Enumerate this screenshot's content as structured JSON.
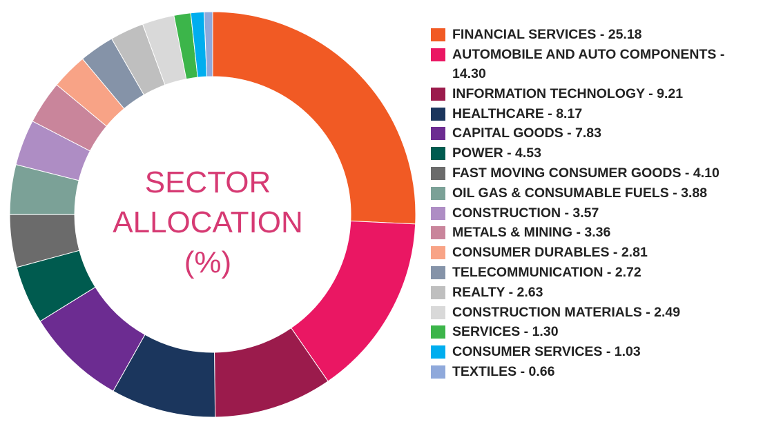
{
  "chart_data": {
    "type": "pie",
    "title": [
      "SECTOR",
      "ALLOCATION",
      "(%)"
    ],
    "legend_position": "right",
    "slices": [
      {
        "label": "FINANCIAL SERVICES - 25.18",
        "value": 25.18,
        "color": "#f15a24"
      },
      {
        "label": "AUTOMOBILE AND AUTO COMPONENTS - 14.30",
        "value": 14.3,
        "color": "#ea1763"
      },
      {
        "label": "INFORMATION TECHNOLOGY - 9.21",
        "value": 9.21,
        "color": "#9b1b4c"
      },
      {
        "label": "HEALTHCARE - 8.17",
        "value": 8.17,
        "color": "#1b365d"
      },
      {
        "label": "CAPITAL GOODS - 7.83",
        "value": 7.83,
        "color": "#6c2c91"
      },
      {
        "label": "POWER - 4.53",
        "value": 4.53,
        "color": "#005b4f"
      },
      {
        "label": "FAST MOVING CONSUMER GOODS - 4.10",
        "value": 4.1,
        "color": "#6b6b6b"
      },
      {
        "label": "OIL GAS & CONSUMABLE FUELS - 3.88",
        "value": 3.88,
        "color": "#7ba197"
      },
      {
        "label": "CONSTRUCTION - 3.57",
        "value": 3.57,
        "color": "#ae8dc4"
      },
      {
        "label": "METALS & MINING - 3.36",
        "value": 3.36,
        "color": "#c9859b"
      },
      {
        "label": "CONSUMER DURABLES - 2.81",
        "value": 2.81,
        "color": "#f8a386"
      },
      {
        "label": "TELECOMMUNICATION - 2.72",
        "value": 2.72,
        "color": "#8593a8"
      },
      {
        "label": "REALTY - 2.63",
        "value": 2.63,
        "color": "#bfbfbf"
      },
      {
        "label": "CONSTRUCTION MATERIALS  - 2.49",
        "value": 2.49,
        "color": "#d9d9d9"
      },
      {
        "label": "SERVICES  - 1.30",
        "value": 1.3,
        "color": "#3cb54a"
      },
      {
        "label": "CONSUMER SERVICES  - 1.03",
        "value": 1.03,
        "color": "#00aeef"
      },
      {
        "label": "TEXTILES  - 0.66",
        "value": 0.66,
        "color": "#8fa9db"
      }
    ]
  }
}
